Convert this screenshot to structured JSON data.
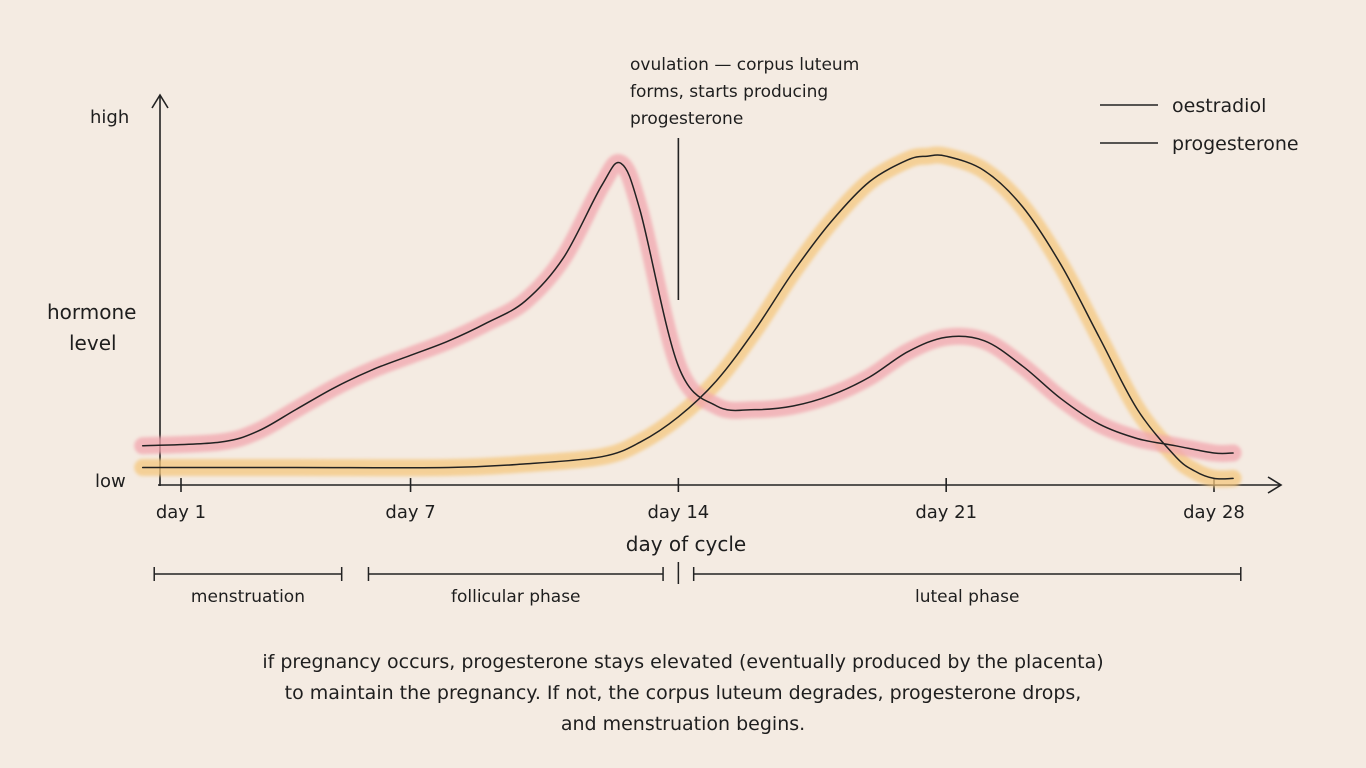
{
  "chart_data": {
    "type": "line",
    "ylabel_lines": [
      "hormone",
      "level"
    ],
    "xlabel": "day of cycle",
    "y_tick_labels": {
      "high": "high",
      "low": "low"
    },
    "xlim": [
      0.3,
      28.3
    ],
    "ylim": [
      0,
      1
    ],
    "x_ticks": [
      {
        "value": 1,
        "label": "day 1"
      },
      {
        "value": 7,
        "label": "day 7"
      },
      {
        "value": 14,
        "label": "day 14"
      },
      {
        "value": 21,
        "label": "day 21"
      },
      {
        "value": 28,
        "label": "day 28"
      }
    ],
    "series": [
      {
        "name": "oestradiol",
        "color": "#f2a6ae",
        "x": [
          0,
          2,
          3,
          4,
          5,
          6,
          7,
          8,
          9,
          10,
          11,
          12,
          12.5,
          13,
          14,
          15,
          16,
          17,
          18,
          19,
          20,
          21,
          22,
          23,
          24,
          25,
          26,
          27,
          28,
          28.5
        ],
        "y": [
          0.1,
          0.11,
          0.14,
          0.2,
          0.26,
          0.31,
          0.35,
          0.39,
          0.44,
          0.5,
          0.62,
          0.82,
          0.88,
          0.75,
          0.32,
          0.21,
          0.2,
          0.21,
          0.24,
          0.29,
          0.36,
          0.4,
          0.39,
          0.32,
          0.23,
          0.16,
          0.12,
          0.1,
          0.08,
          0.08
        ]
      },
      {
        "name": "progesterone",
        "color": "#f5c77e",
        "x": [
          0,
          4,
          8,
          10,
          12,
          13,
          14,
          15,
          16,
          17,
          18,
          19,
          20,
          20.5,
          21,
          22,
          23,
          24,
          25,
          26,
          27,
          27.5,
          28,
          28.5
        ],
        "y": [
          0.04,
          0.04,
          0.04,
          0.05,
          0.07,
          0.11,
          0.18,
          0.28,
          0.42,
          0.58,
          0.72,
          0.83,
          0.89,
          0.9,
          0.9,
          0.86,
          0.76,
          0.6,
          0.4,
          0.2,
          0.07,
          0.03,
          0.01,
          0.01
        ]
      }
    ],
    "marker": {
      "x": 14,
      "label_lines": [
        "ovulation — corpus luteum",
        "forms, starts producing",
        "progesterone"
      ]
    },
    "phases": [
      {
        "label": "menstruation",
        "start": 0.3,
        "end": 5.2
      },
      {
        "label": "follicular phase",
        "start": 5.9,
        "end": 13.6
      },
      {
        "label": "luteal phase",
        "start": 14.4,
        "end": 28.7
      }
    ],
    "legend_position": "top-right"
  },
  "footnote_lines": [
    "if pregnancy occurs, progesterone stays elevated (eventually produced by the placenta)",
    "to maintain the pregnancy. If not, the corpus luteum degrades, progesterone drops,",
    "and menstruation begins."
  ]
}
